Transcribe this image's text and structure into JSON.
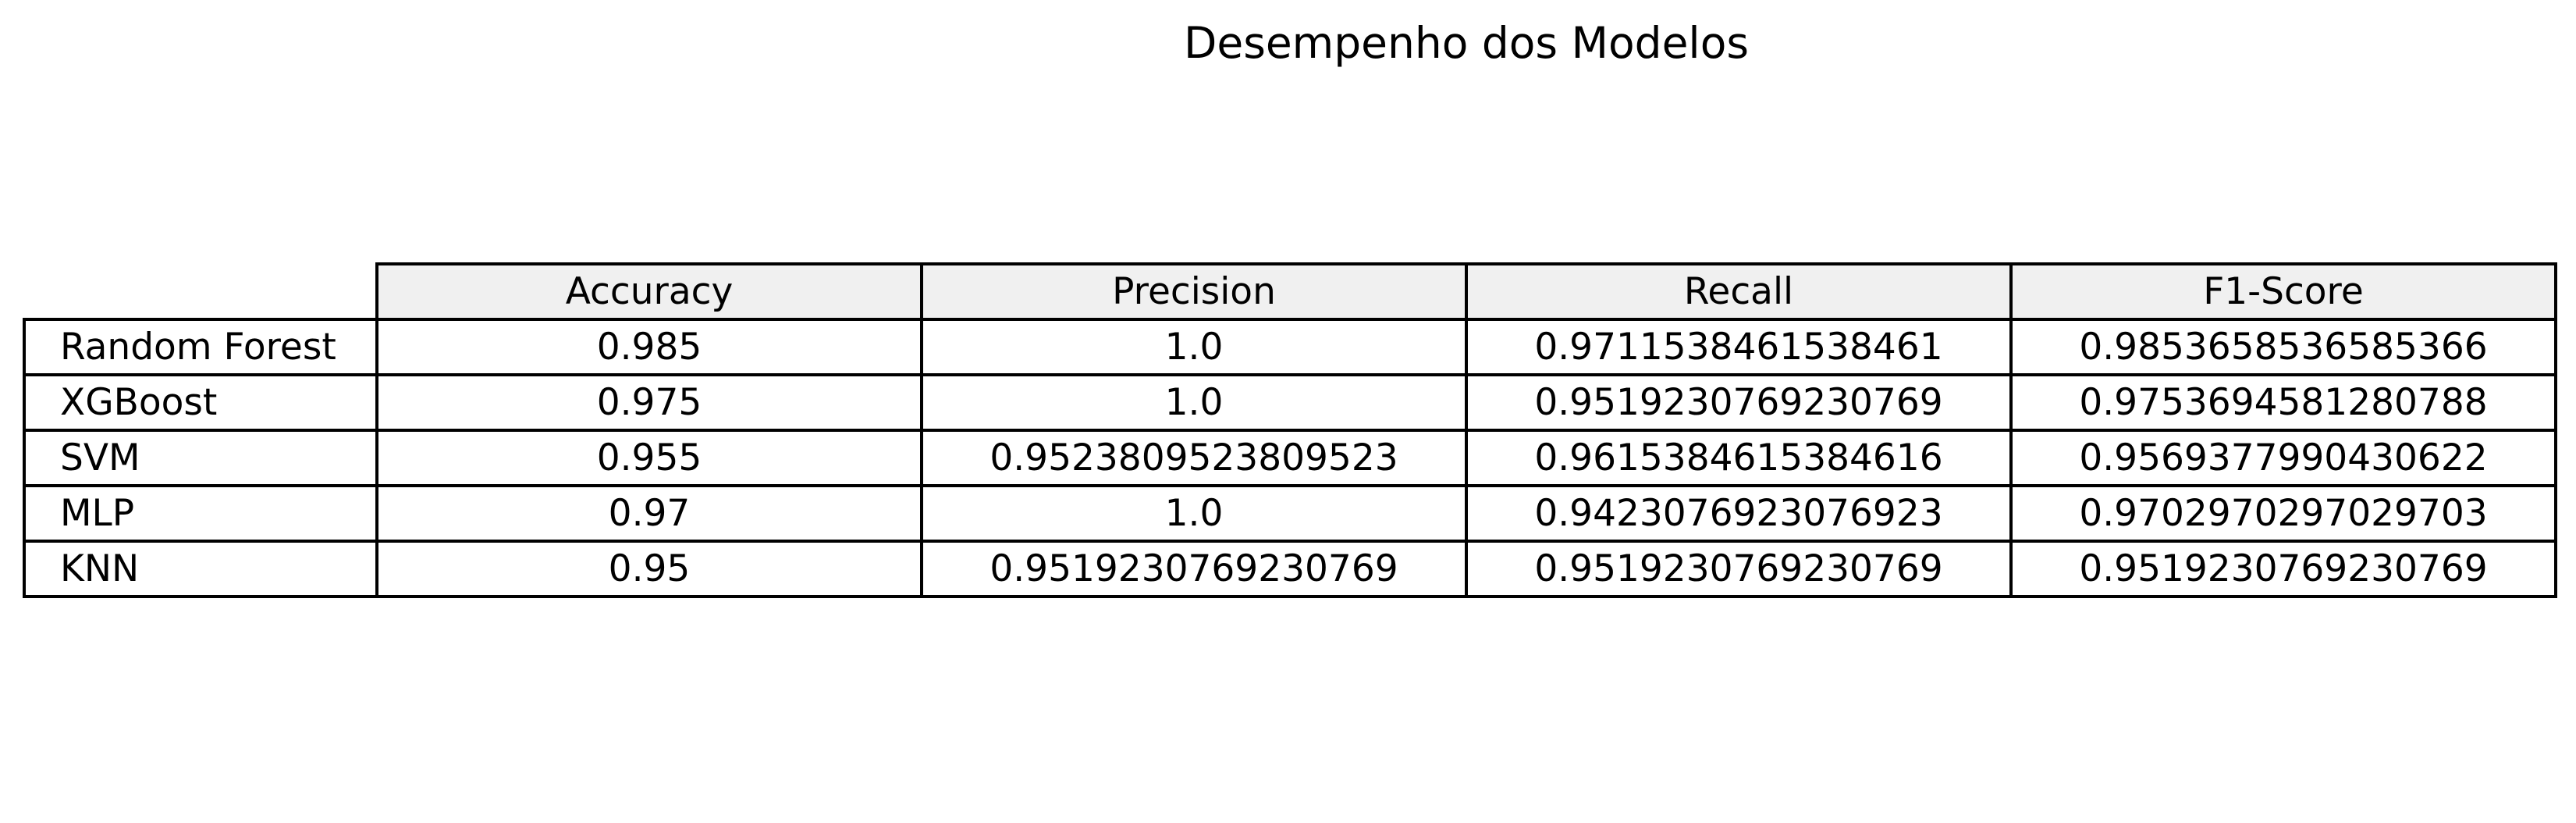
{
  "chart_data": {
    "type": "table",
    "title": "Desempenho dos Modelos",
    "columns": [
      "Accuracy",
      "Precision",
      "Recall",
      "F1-Score"
    ],
    "rows": [
      {
        "label": "Random Forest",
        "values": [
          "0.985",
          "1.0",
          "0.9711538461538461",
          "0.9853658536585366"
        ]
      },
      {
        "label": "XGBoost",
        "values": [
          "0.975",
          "1.0",
          "0.9519230769230769",
          "0.9753694581280788"
        ]
      },
      {
        "label": "SVM",
        "values": [
          "0.955",
          "0.9523809523809523",
          "0.9615384615384616",
          "0.9569377990430622"
        ]
      },
      {
        "label": "MLP",
        "values": [
          "0.97",
          "1.0",
          "0.9423076923076923",
          "0.9702970297029703"
        ]
      },
      {
        "label": "KNN",
        "values": [
          "0.95",
          "0.9519230769230769",
          "0.9519230769230769",
          "0.9519230769230769"
        ]
      }
    ],
    "header_fill": "#f0f0f0",
    "border_color": "#000000"
  }
}
